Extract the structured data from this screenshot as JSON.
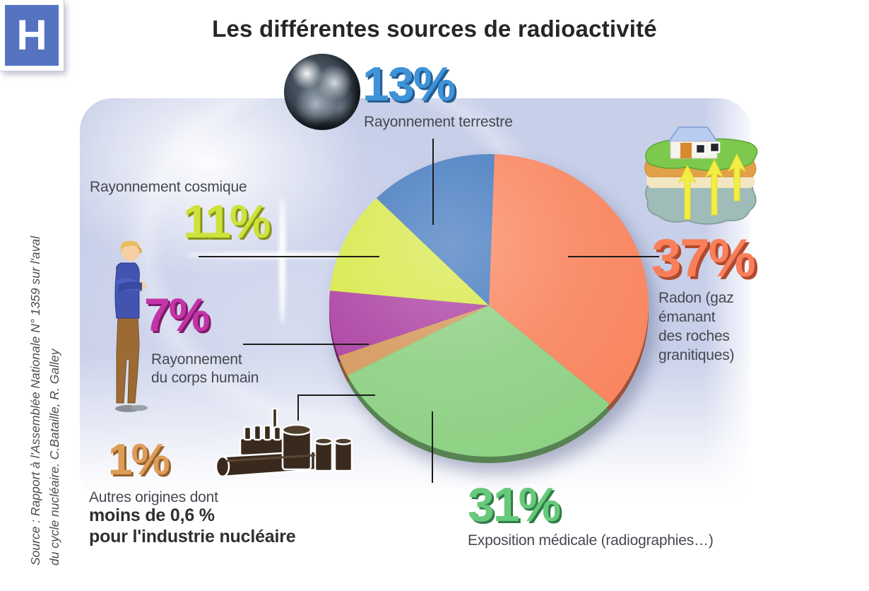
{
  "title": "Les différentes sources de radioactivité",
  "source": {
    "line1": "Source : Rapport à l'Assemblée Nationale N° 1359 sur l'aval",
    "line2": "du cycle nucléaire. C.Bataille, R. Galley"
  },
  "chart_data": {
    "type": "pie",
    "title": "Les différentes sources de radioactivité",
    "start_angle_deg": 2,
    "clockwise": true,
    "legend_position": "callouts-around-pie",
    "segments": [
      {
        "key": "radon",
        "label": "Radon (gaz émanant des roches granitiques)",
        "value": 37,
        "color": "#f9855f"
      },
      {
        "key": "medicale",
        "label": "Exposition médicale (radiographies…)",
        "value": 31,
        "color": "#8ed184"
      },
      {
        "key": "autres",
        "label": "Autres origines dont moins de 0,6 % pour l'industrie nucléaire",
        "value": 1,
        "color": "#d59a5e"
      },
      {
        "key": "corps",
        "label": "Rayonnement du corps humain",
        "value": 7,
        "color": "#ad43a3"
      },
      {
        "key": "cosmique",
        "label": "Rayonnement cosmique",
        "value": 11,
        "color": "#d8e84a"
      },
      {
        "key": "terrestre",
        "label": "Rayonnement terrestre",
        "value": 13,
        "color": "#4379bf"
      }
    ]
  },
  "callouts": {
    "terrestre": {
      "pct": "13%",
      "label": "Rayonnement terrestre",
      "color": "#3e93d9"
    },
    "cosmique": {
      "pct": "11%",
      "label": "Rayonnement cosmique",
      "color": "#cfe23c"
    },
    "corps": {
      "pct": "7%",
      "label_line1": "Rayonnement",
      "label_line2": "du corps humain",
      "color": "#c433a8"
    },
    "autres": {
      "pct": "1%",
      "label_line1": "Autres origines dont",
      "label_line2": "moins de 0,6 %",
      "label_line3": "pour l'industrie nucléaire",
      "color": "#dd9c58"
    },
    "medicale": {
      "pct": "31%",
      "label": "Exposition médicale (radiographies…)",
      "color": "#67c97b"
    },
    "radon": {
      "pct": "37%",
      "label_lines": [
        "Radon (gaz",
        "émanant",
        "des roches",
        "granitiques)"
      ],
      "color": "#f97f5b"
    }
  },
  "hospital": {
    "letter": "H"
  },
  "icons": {
    "terrestre": "earth-photo-icon",
    "radon": "house-on-granite-ground-icon",
    "corps": "standing-person-icon",
    "autres": "nuclear-industry-barrels-icon",
    "medicale": "hospital-h-sign-icon"
  },
  "colors": {
    "panel_background": "#c8cfe9",
    "leader_line": "#1c1c1c",
    "label_text": "#45484f",
    "title_text": "#262626"
  }
}
